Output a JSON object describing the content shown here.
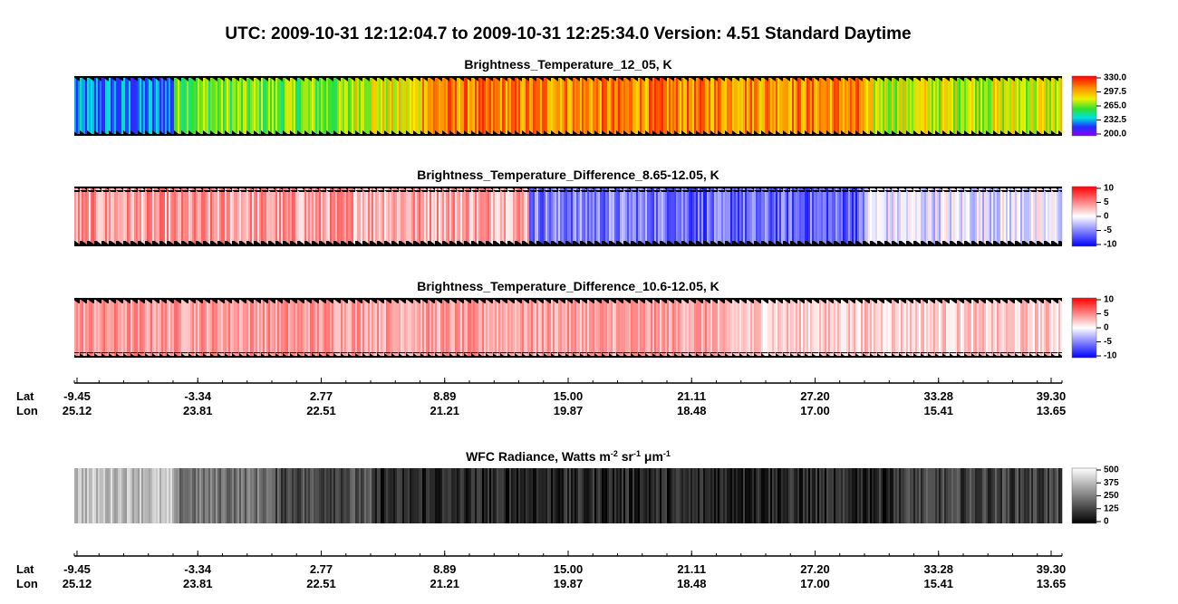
{
  "header": {
    "title": "UTC:  2009-10-31   12:12:04.7  to  2009-10-31   12:25:34.0    Version: 4.51  Standard Daytime"
  },
  "panels": [
    {
      "title": "Brightness_Temperature_12_05, K",
      "colorbar_labels": [
        "330.0",
        "297.5",
        "265.0",
        "232.5",
        "200.0"
      ]
    },
    {
      "title": "Brightness_Temperature_Difference_8.65-12.05, K",
      "colorbar_labels": [
        "10",
        "5",
        "0",
        "-5",
        "-10"
      ]
    },
    {
      "title": "Brightness_Temperature_Difference_10.6-12.05, K",
      "colorbar_labels": [
        "10",
        "5",
        "0",
        "-5",
        "-10"
      ]
    }
  ],
  "wfc_panel": {
    "title_parts": [
      "WFC Radiance, Watts m",
      "-2",
      " sr",
      "-1",
      " μm",
      "-1"
    ],
    "colorbar_labels": [
      "500",
      "375",
      "250",
      "125",
      "0"
    ]
  },
  "axis": {
    "lat_label": "Lat",
    "lon_label": "Lon",
    "lat": [
      "-9.45",
      "-3.34",
      "2.77",
      "8.89",
      "15.00",
      "21.11",
      "27.20",
      "33.28",
      "39.30"
    ],
    "lon": [
      "25.12",
      "23.81",
      "22.51",
      "21.21",
      "19.87",
      "18.48",
      "17.00",
      "15.41",
      "13.65"
    ]
  }
}
